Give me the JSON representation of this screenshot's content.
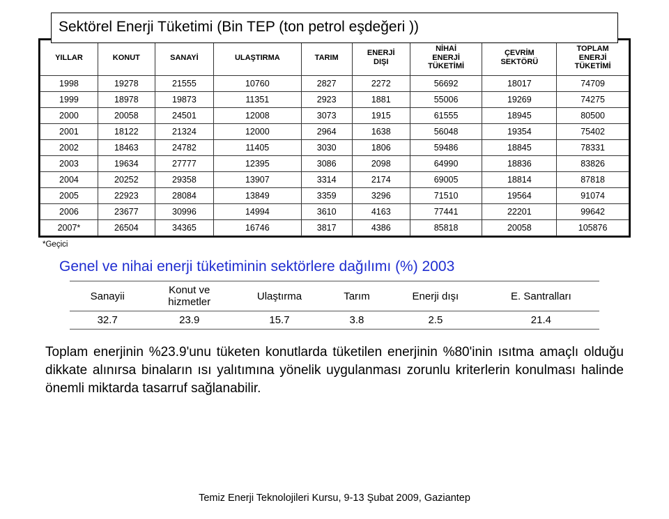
{
  "title": "Sektörel Enerji Tüketimi (Bin TEP (ton petrol eşdeğeri ))",
  "mainTable": {
    "headers": [
      "YILLAR",
      "KONUT",
      "SANAYİ",
      "ULAŞTIRMA",
      "TARIM",
      "ENERJİ DIŞI",
      "NİHAİ ENERJİ TÜKETİMİ",
      "ÇEVRİM SEKTÖRÜ",
      "TOPLAM ENERJİ TÜKETİMİ"
    ],
    "rows": [
      [
        "1998",
        "19278",
        "21555",
        "10760",
        "2827",
        "2272",
        "56692",
        "18017",
        "74709"
      ],
      [
        "1999",
        "18978",
        "19873",
        "11351",
        "2923",
        "1881",
        "55006",
        "19269",
        "74275"
      ],
      [
        "2000",
        "20058",
        "24501",
        "12008",
        "3073",
        "1915",
        "61555",
        "18945",
        "80500"
      ],
      [
        "2001",
        "18122",
        "21324",
        "12000",
        "2964",
        "1638",
        "56048",
        "19354",
        "75402"
      ],
      [
        "2002",
        "18463",
        "24782",
        "11405",
        "3030",
        "1806",
        "59486",
        "18845",
        "78331"
      ],
      [
        "2003",
        "19634",
        "27777",
        "12395",
        "3086",
        "2098",
        "64990",
        "18836",
        "83826"
      ],
      [
        "2004",
        "20252",
        "29358",
        "13907",
        "3314",
        "2174",
        "69005",
        "18814",
        "87818"
      ],
      [
        "2005",
        "22923",
        "28084",
        "13849",
        "3359",
        "3296",
        "71510",
        "19564",
        "91074"
      ],
      [
        "2006",
        "23677",
        "30996",
        "14994",
        "3610",
        "4163",
        "77441",
        "22201",
        "99642"
      ],
      [
        "2007*",
        "26504",
        "34365",
        "16746",
        "3817",
        "4386",
        "85818",
        "20058",
        "105876"
      ]
    ]
  },
  "geciciNote": "*Geçici",
  "blueHeading": "Genel ve nihai enerji tüketiminin sektörlere dağılımı (%) 2003",
  "smallTable": {
    "headers": [
      "Sanayii",
      "Konut ve hizmetler",
      "Ulaştırma",
      "Tarım",
      "Enerji dışı",
      "E. Santralları"
    ],
    "row": [
      "32.7",
      "23.9",
      "15.7",
      "3.8",
      "2.5",
      "21.4"
    ]
  },
  "bodyText": "Toplam enerjinin %23.9'unu tüketen konutlarda tüketilen enerjinin %80'inin ısıtma amaçlı olduğu dikkate alınırsa binaların ısı yalıtımına yönelik uygulanması zorunlu kriterlerin konulması halinde önemli miktarda tasarruf sağlanabilir.",
  "footer": "Temiz Enerji Teknolojileri Kursu, 9-13 Şubat 2009, Gaziantep"
}
